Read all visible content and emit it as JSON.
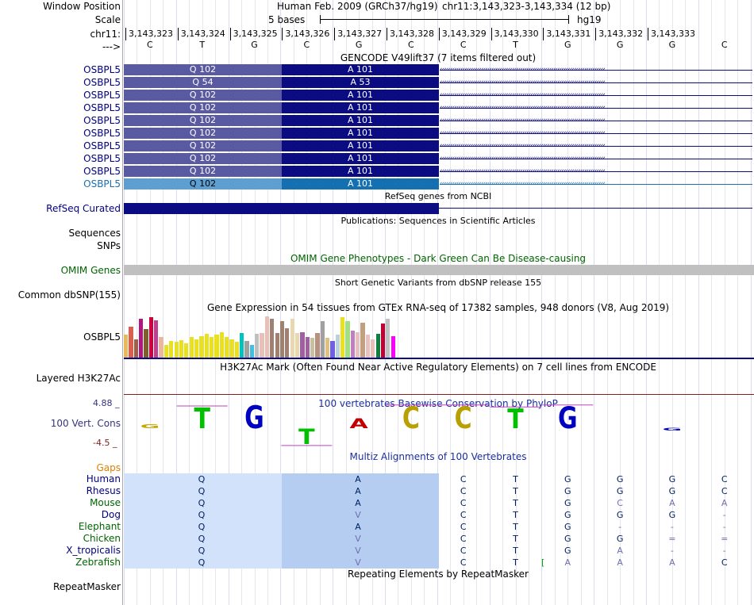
{
  "header": {
    "window_position_label": "Window Position",
    "scale_label": "Scale",
    "chrom_label": "chr11:",
    "strand_label": "--->",
    "assembly": "Human Feb. 2009 (GRCh37/hg19)",
    "position": "chr11:3,143,323-3,143,334 (12 bp)",
    "scale_text": "5 bases",
    "db": "hg19",
    "coords": [
      "3,143,323",
      "3,143,324",
      "3,143,325",
      "3,143,326",
      "3,143,327",
      "3,143,328",
      "3,143,329",
      "3,143,330",
      "3,143,331",
      "3,143,332",
      "3,143,333"
    ],
    "bases": [
      "C",
      "T",
      "G",
      "C",
      "G",
      "C",
      "C",
      "T",
      "G",
      "G",
      "G",
      "C"
    ]
  },
  "gencode": {
    "title": "GENCODE V49lift37 (7 items filtered out)",
    "rows": [
      {
        "label": "OSBPL5",
        "left": "Q 102",
        "right": "A 101",
        "style": "dark"
      },
      {
        "label": "OSBPL5",
        "left": "Q 54",
        "right": "A 53",
        "style": "dark"
      },
      {
        "label": "OSBPL5",
        "left": "Q 102",
        "right": "A 101",
        "style": "dark"
      },
      {
        "label": "OSBPL5",
        "left": "Q 102",
        "right": "A 101",
        "style": "dark"
      },
      {
        "label": "OSBPL5",
        "left": "Q 102",
        "right": "A 101",
        "style": "dark"
      },
      {
        "label": "OSBPL5",
        "left": "Q 102",
        "right": "A 101",
        "style": "dark"
      },
      {
        "label": "OSBPL5",
        "left": "Q 102",
        "right": "A 101",
        "style": "dark"
      },
      {
        "label": "OSBPL5",
        "left": "Q 102",
        "right": "A 101",
        "style": "dark"
      },
      {
        "label": "OSBPL5",
        "left": "Q 102",
        "right": "A 101",
        "style": "dark"
      },
      {
        "label": "OSBPL5",
        "left": "Q 102",
        "right": "A 101",
        "style": "light"
      }
    ]
  },
  "refseq": {
    "title": "RefSeq genes from NCBI",
    "label": "RefSeq Curated"
  },
  "publications": {
    "title": "Publications: Sequences in Scientific Articles",
    "label1": "Sequences",
    "label2": "SNPs"
  },
  "omim": {
    "title": "OMIM Gene Phenotypes - Dark Green Can Be Disease-causing",
    "label": "OMIM Genes"
  },
  "dbsnp": {
    "title": "Short Genetic Variants from dbSNP release 155",
    "label": "Common dbSNP(155)"
  },
  "gtex": {
    "title": "Gene Expression in 54 tissues from GTEx RNA-seq of 17382 samples, 948 donors (V8, Aug 2019)",
    "label": "OSBPL5",
    "values": [
      0.55,
      0.75,
      0.45,
      0.95,
      0.7,
      0.98,
      0.9,
      0.5,
      0.3,
      0.4,
      0.38,
      0.42,
      0.35,
      0.5,
      0.45,
      0.52,
      0.58,
      0.5,
      0.55,
      0.62,
      0.5,
      0.45,
      0.38,
      0.6,
      0.4,
      0.3,
      0.58,
      0.6,
      1.0,
      0.95,
      0.6,
      0.88,
      0.72,
      0.95,
      0.6,
      0.62,
      0.5,
      0.48,
      0.6,
      0.88,
      0.48,
      0.4,
      0.55,
      0.98,
      0.88,
      0.65,
      0.62,
      0.85,
      0.55,
      0.45,
      0.58,
      0.82,
      0.95,
      0.52
    ],
    "colors": [
      "#e8b85a",
      "#d86050",
      "#a06048",
      "#b01880",
      "#7f5f2a",
      "#d00040",
      "#c04090",
      "#e8b8a0",
      "#e8e020",
      "#e8e020",
      "#e8e020",
      "#e8e020",
      "#e8e020",
      "#e8e020",
      "#e8e020",
      "#e8e020",
      "#e8e020",
      "#e8e020",
      "#e8e020",
      "#e8e020",
      "#e8e020",
      "#e8e020",
      "#e8e020",
      "#00c0c0",
      "#a0a0a0",
      "#40c0e0",
      "#c0c0c0",
      "#e8c0b8",
      "#e8c0b8",
      "#a08070",
      "#a08070",
      "#a08070",
      "#a08070",
      "#e8d8b0",
      "#e8d8b0",
      "#a060a0",
      "#a060a0",
      "#c8c0a0",
      "#b89080",
      "#a0a0a0",
      "#e0c080",
      "#7060e0",
      "#b8d0e0",
      "#e8e020",
      "#a0e080",
      "#c080c0",
      "#e8c0c0",
      "#c0a080",
      "#e8c0c0",
      "#e8c0b8",
      "#108040",
      "#c00030",
      "#c0c0c0",
      "#ff00ff"
    ]
  },
  "h3k27ac": {
    "title": "H3K27Ac Mark (Often Found Near Active Regulatory Elements) on 7 cell lines from ENCODE",
    "label": "Layered H3K27Ac"
  },
  "phylop": {
    "title": "100 vertebrates Basewise Conservation by PhyloP",
    "label": "100 Vert. Cons",
    "ymax": "4.88 _",
    "ymin": "-4.5 _",
    "logos": [
      {
        "base": "G",
        "score": 0.8,
        "color": "#c8a800"
      },
      {
        "base": "T",
        "score": 4.2,
        "color": "#00c000"
      },
      {
        "base": "G",
        "score": 4.6,
        "color": "#0000c0"
      },
      {
        "base": "T",
        "score": -3.2,
        "color": "#00c000"
      },
      {
        "base": "A",
        "score": 2.0,
        "color": "#c00000"
      },
      {
        "base": "C",
        "score": 4.4,
        "color": "#b8a000"
      },
      {
        "base": "C",
        "score": 4.4,
        "color": "#b8a000"
      },
      {
        "base": "T",
        "score": 4.0,
        "color": "#00c000"
      },
      {
        "base": "G",
        "score": 4.4,
        "color": "#0000c0"
      },
      {
        "base": "G",
        "score": -0.5,
        "color": "#0000c0"
      }
    ]
  },
  "multiz": {
    "title": "Multiz Alignments of 100 Vertebrates",
    "gaps_label": "Gaps",
    "species": [
      {
        "name": "Human",
        "aa1": "Q",
        "aa2": "A",
        "bases": [
          "C",
          "T",
          "G",
          "G",
          "G",
          "C"
        ]
      },
      {
        "name": "Rhesus",
        "aa1": "Q",
        "aa2": "A",
        "bases": [
          "C",
          "T",
          "G",
          "G",
          "G",
          "C"
        ]
      },
      {
        "name": "Mouse",
        "aa1": "Q",
        "aa2": "A",
        "bases": [
          "C",
          "T",
          "G",
          "C",
          "A",
          "A"
        ]
      },
      {
        "name": "Dog",
        "aa1": "Q",
        "aa2": "V",
        "bases": [
          "C",
          "T",
          "G",
          "G",
          "G",
          "-"
        ]
      },
      {
        "name": "Elephant",
        "aa1": "Q",
        "aa2": "A",
        "bases": [
          "C",
          "T",
          "G",
          "-",
          "-",
          "-"
        ]
      },
      {
        "name": "Chicken",
        "aa1": "Q",
        "aa2": "V",
        "bases": [
          "C",
          "T",
          "G",
          "G",
          "=",
          "="
        ]
      },
      {
        "name": "X_tropicalis",
        "aa1": "Q",
        "aa2": "V",
        "bases": [
          "C",
          "T",
          "G",
          "A",
          "-",
          "-"
        ]
      },
      {
        "name": "Zebrafish",
        "aa1": "Q",
        "aa2": "V",
        "bases": [
          "C",
          "T",
          "A",
          "A",
          "A",
          "C"
        ]
      }
    ],
    "zebrafish_bracket": "["
  },
  "repeatmasker": {
    "title": "Repeating Elements by RepeatMasker",
    "label": "RepeatMasker"
  },
  "colors": {
    "gene_dark": "#0b0b82",
    "gene_mid": "#5a5aa2",
    "gene_light_l": "#5c9fd0",
    "gene_light_r": "#1470b0",
    "omim": "#c0c0c0",
    "multiz_bg": "#d2e2fa",
    "multiz_bg2": "#b4cdf0",
    "label_blue": "#000080",
    "label_green": "#006400"
  }
}
